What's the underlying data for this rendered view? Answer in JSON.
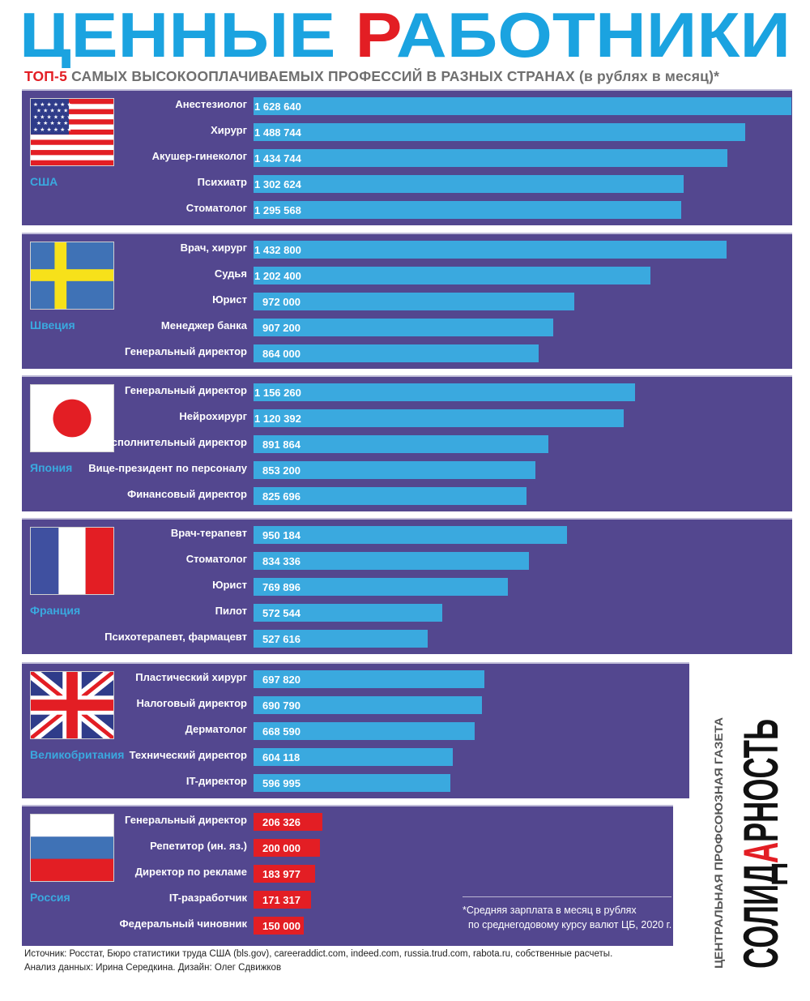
{
  "header": {
    "title_part1": "ЦЕННЫЕ ",
    "title_letter": "Р",
    "title_part2": "АБОТНИКИ",
    "subtitle_lead": "ТОП-5",
    "subtitle_rest": " САМЫХ ВЫСОКООПЛАЧИВАЕМЫХ ПРОФЕССИЙ В РАЗНЫХ СТРАНАХ (в рублях в месяц)*"
  },
  "colors": {
    "title": "#1ba3e0",
    "accent": "#e31e24",
    "panel": "#53478f",
    "bar": "#3aa9df",
    "bar_russia": "#e31e24"
  },
  "chart_data": {
    "type": "bar",
    "orientation": "horizontal",
    "unit": "рублей в месяц",
    "groups": [
      {
        "country": "США",
        "flag": "usa-flag-icon",
        "items": [
          {
            "label": "Анестезиолог",
            "value": 1628640,
            "value_text": "1 628 640"
          },
          {
            "label": "Хирург",
            "value": 1488744,
            "value_text": "1 488 744"
          },
          {
            "label": "Акушер-гинеколог",
            "value": 1434744,
            "value_text": "1 434 744"
          },
          {
            "label": "Психиатр",
            "value": 1302624,
            "value_text": "1 302 624"
          },
          {
            "label": "Стоматолог",
            "value": 1295568,
            "value_text": "1 295 568"
          }
        ]
      },
      {
        "country": "Швеция",
        "flag": "sweden-flag-icon",
        "items": [
          {
            "label": "Врач, хирург",
            "value": 1432800,
            "value_text": "1 432 800"
          },
          {
            "label": "Судья",
            "value": 1202400,
            "value_text": "1 202 400"
          },
          {
            "label": "Юрист",
            "value": 972000,
            "value_text": "972 000"
          },
          {
            "label": "Менеджер банка",
            "value": 907200,
            "value_text": "907 200"
          },
          {
            "label": "Генеральный директор",
            "value": 864000,
            "value_text": "864 000"
          }
        ]
      },
      {
        "country": "Япония",
        "flag": "japan-flag-icon",
        "items": [
          {
            "label": "Генеральный директор",
            "value": 1156260,
            "value_text": "1 156 260"
          },
          {
            "label": "Нейрохирург",
            "value": 1120392,
            "value_text": "1 120 392"
          },
          {
            "label": "Исполнительный директор",
            "value": 891864,
            "value_text": "891 864"
          },
          {
            "label": "Вице-президент по персоналу",
            "value": 853200,
            "value_text": "853 200"
          },
          {
            "label": "Финансовый директор",
            "value": 825696,
            "value_text": "825 696"
          }
        ]
      },
      {
        "country": "Франция",
        "flag": "france-flag-icon",
        "items": [
          {
            "label": "Врач-терапевт",
            "value": 950184,
            "value_text": "950 184"
          },
          {
            "label": "Стоматолог",
            "value": 834336,
            "value_text": "834 336"
          },
          {
            "label": "Юрист",
            "value": 769896,
            "value_text": "769 896"
          },
          {
            "label": "Пилот",
            "value": 572544,
            "value_text": "572 544"
          },
          {
            "label": "Психотерапевт, фармацевт",
            "value": 527616,
            "value_text": "527 616"
          }
        ]
      },
      {
        "country": "Великобритания",
        "flag": "uk-flag-icon",
        "items": [
          {
            "label": "Пластический хирург",
            "value": 697820,
            "value_text": "697 820"
          },
          {
            "label": "Налоговый директор",
            "value": 690790,
            "value_text": "690 790"
          },
          {
            "label": "Дерматолог",
            "value": 668590,
            "value_text": "668 590"
          },
          {
            "label": "Технический директор",
            "value": 604118,
            "value_text": "604 118"
          },
          {
            "label": "IT-директор",
            "value": 596995,
            "value_text": "596 995"
          }
        ]
      },
      {
        "country": "Россия",
        "flag": "russia-flag-icon",
        "items": [
          {
            "label": "Генеральный директор",
            "value": 206326,
            "value_text": "206 326"
          },
          {
            "label": "Репетитор (ин. яз.)",
            "value": 200000,
            "value_text": "200 000"
          },
          {
            "label": "Директор по рекламе",
            "value": 183977,
            "value_text": "183 977"
          },
          {
            "label": "IT-разработчик",
            "value": 171317,
            "value_text": "171 317"
          },
          {
            "label": "Федеральный чиновник",
            "value": 150000,
            "value_text": "150 000"
          }
        ]
      }
    ]
  },
  "footnote": {
    "line1": "*Средняя зарплата в месяц в рублях",
    "line2": "по среднегодовому курсу валют ЦБ, 2020 г."
  },
  "source": "Источник: Росстат, Бюро статистики труда США (bls.gov), careeraddict.com, indeed.com, russia.trud.com, rabota.ru, собственные расчеты.",
  "credits": "Анализ данных: Ирина Середкина. Дизайн: Олег Сдвижков",
  "logo": {
    "tagline": "ЦЕНТРАЛЬНАЯ ПРОФСОЮЗНАЯ ГАЗЕТА",
    "name_part1": "СОЛИД",
    "name_letter": "А",
    "name_part2": "РНОСТЬ"
  }
}
